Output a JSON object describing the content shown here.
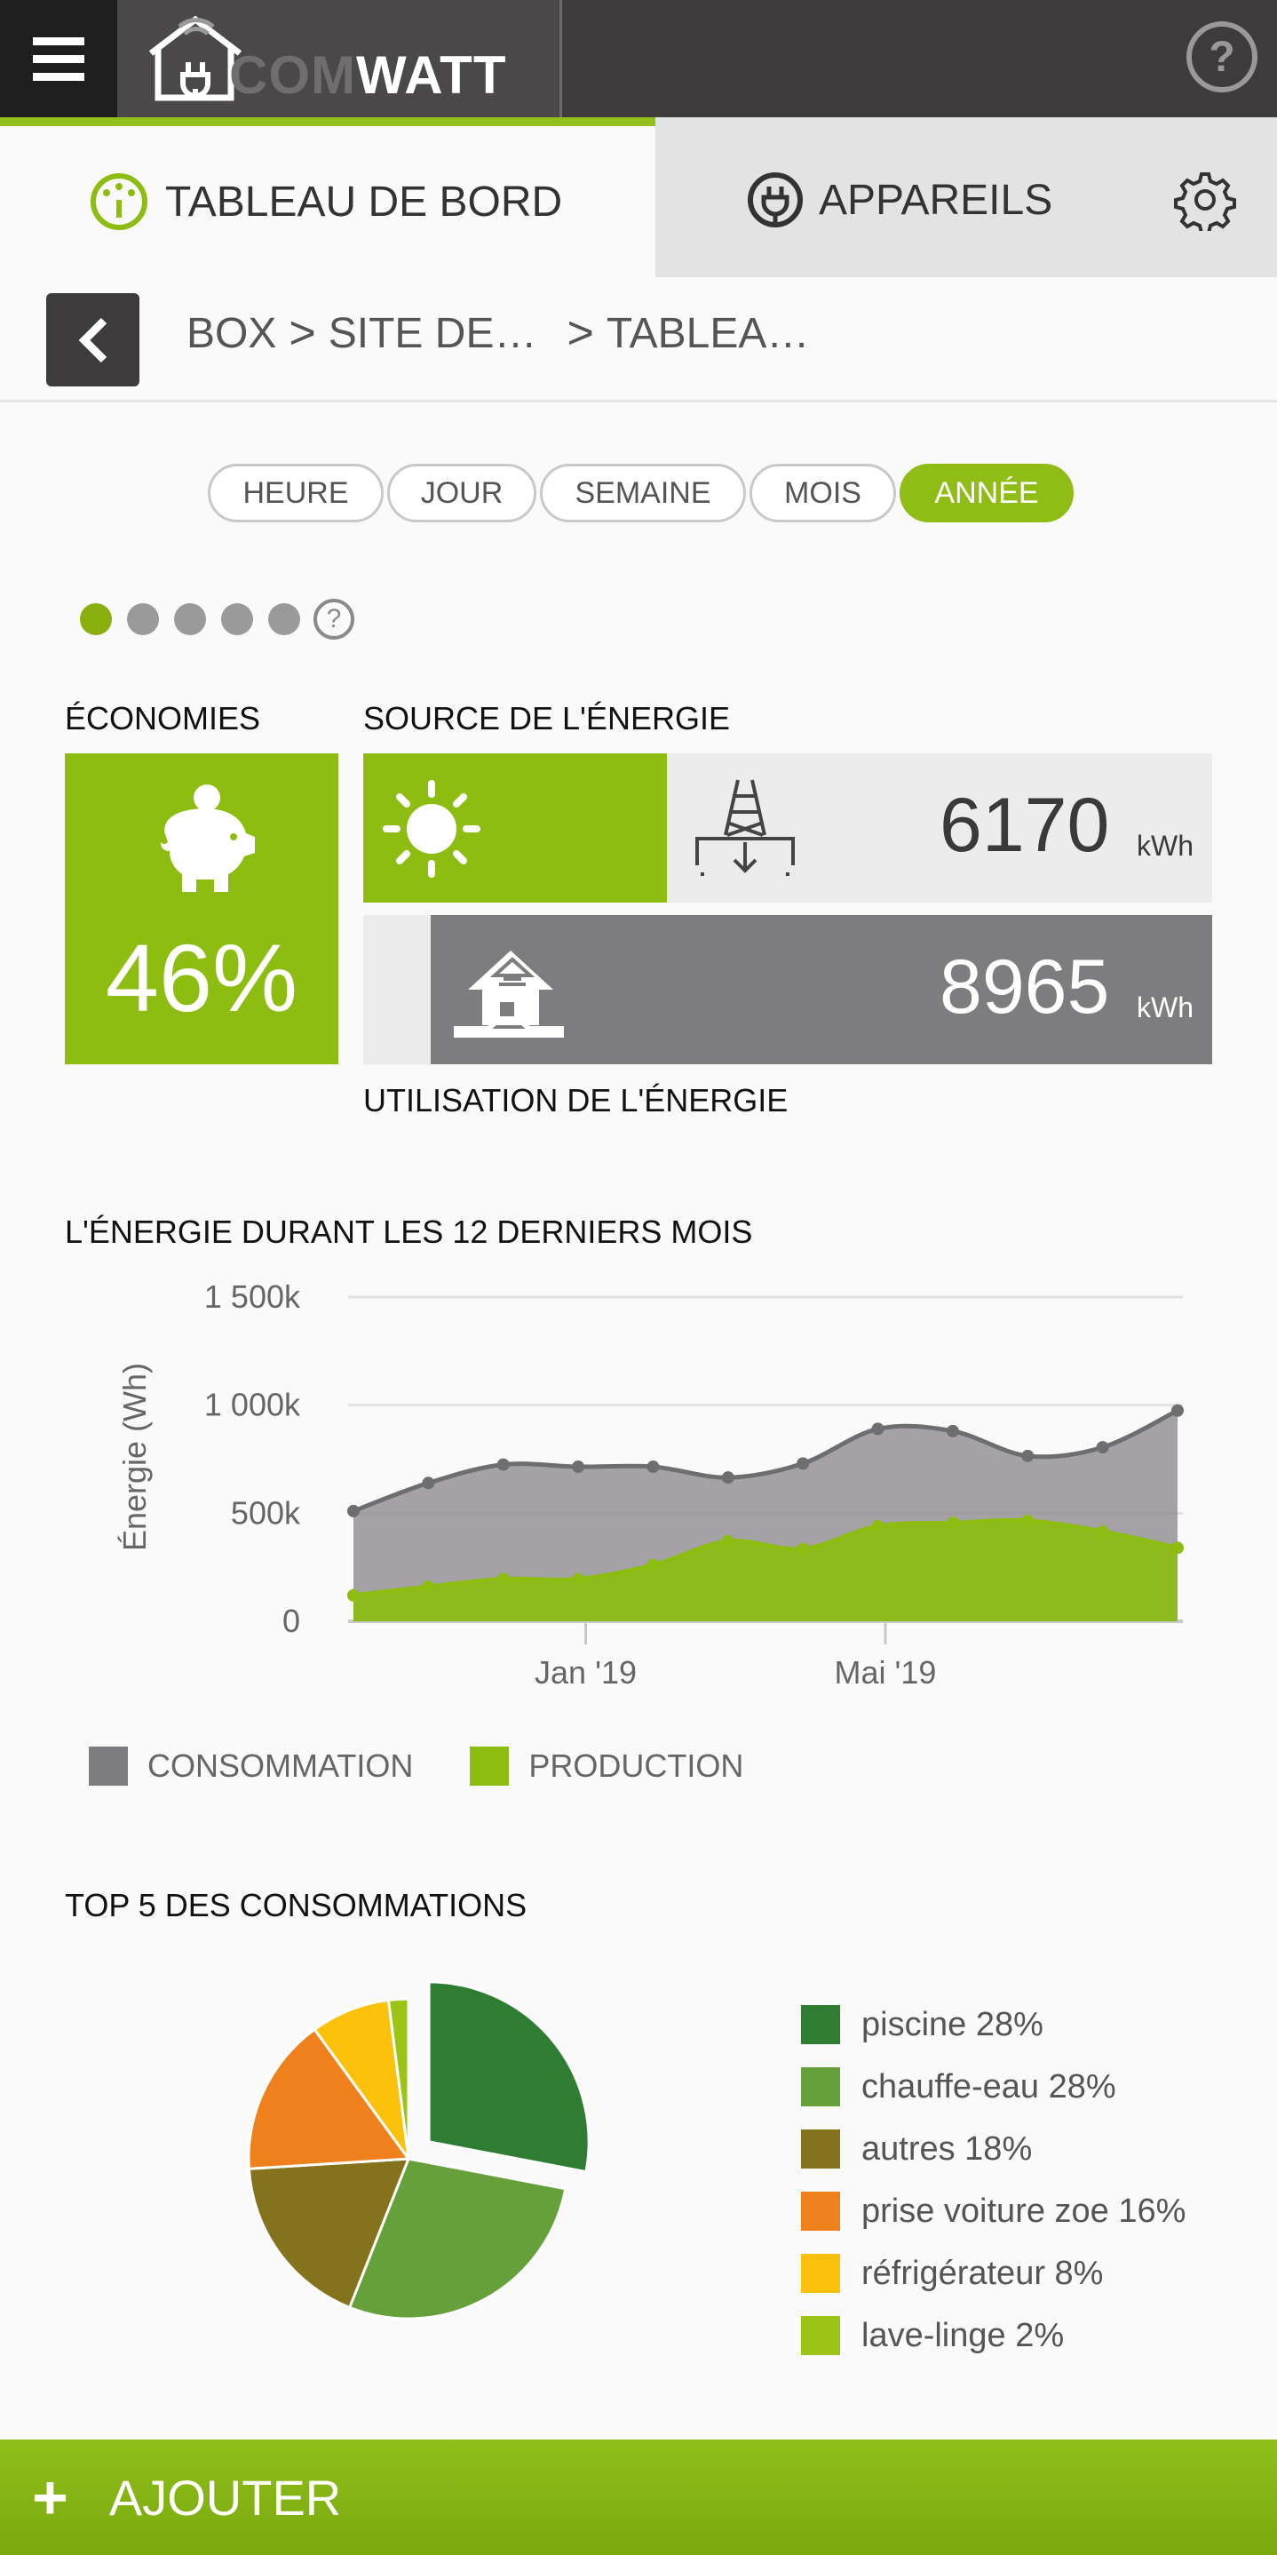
{
  "header": {
    "logo_prefix": "COM",
    "logo_suffix": "WATT",
    "help_glyph": "?"
  },
  "tabs": {
    "dashboard_label": "TABLEAU DE BORD",
    "devices_label": "APPAREILS"
  },
  "breadcrumb": {
    "items": [
      "BOX",
      "SITE DE…",
      "TABLEA…"
    ],
    "separator": ">"
  },
  "periods": [
    "HEURE",
    "JOUR",
    "SEMAINE",
    "MOIS",
    "ANNÉE"
  ],
  "active_period": "ANNÉE",
  "carousel": {
    "page_count": 5,
    "active_index": 0,
    "help_glyph": "?"
  },
  "summary": {
    "savings_title": "ÉCONOMIES",
    "savings_value": "46%",
    "source_title": "SOURCE DE L'ÉNERGIE",
    "grid_value": "6170",
    "grid_unit": "kWh",
    "usage_value": "8965",
    "usage_unit": "kWh",
    "usage_title": "UTILISATION DE L'ÉNERGIE"
  },
  "colors": {
    "accent": "#8cbd10",
    "consumption": "#7d7c7e",
    "production": "#8cbd10",
    "header": "#3d3b3c"
  },
  "chart_data": [
    {
      "type": "area",
      "title": "L'ÉNERGIE DURANT LES 12 DERNIERS MOIS",
      "ylabel": "Énergie (Wh)",
      "xlabel": "",
      "ylim": [
        0,
        1500000
      ],
      "yticks": [
        0,
        500000,
        1000000,
        1500000
      ],
      "ytick_labels": [
        "0",
        "500k",
        "1 000k",
        "1 500k"
      ],
      "xtick_labels": [
        {
          "label": "Jan '19",
          "index": 3
        },
        {
          "label": "Mai '19",
          "index": 7
        }
      ],
      "grid": true,
      "legend_position": "bottom-left",
      "series": [
        {
          "name": "CONSOMMATION",
          "color": "#8e8c8f",
          "values": [
            510000,
            640000,
            725000,
            715000,
            715000,
            665000,
            730000,
            890000,
            880000,
            765000,
            805000,
            975000
          ]
        },
        {
          "name": "PRODUCTION",
          "color": "#8cbd10",
          "values": [
            120000,
            160000,
            195000,
            195000,
            260000,
            370000,
            335000,
            440000,
            455000,
            465000,
            415000,
            340000
          ]
        }
      ]
    },
    {
      "type": "pie",
      "title": "TOP 5 DES CONSOMMATIONS",
      "legend_position": "right",
      "slices": [
        {
          "label": "piscine 28%",
          "value": 28,
          "color": "#2e7d32"
        },
        {
          "label": "chauffe-eau 28%",
          "value": 28,
          "color": "#66a03b"
        },
        {
          "label": "autres 18%",
          "value": 18,
          "color": "#84721c"
        },
        {
          "label": "prise voiture zoe 16%",
          "value": 16,
          "color": "#f0801c"
        },
        {
          "label": "réfrigérateur 8%",
          "value": 8,
          "color": "#fbc10b"
        },
        {
          "label": "lave-linge 2%",
          "value": 2,
          "color": "#9cc416"
        }
      ]
    }
  ],
  "add_button": {
    "plus": "+",
    "label": "AJOUTER"
  },
  "icons": {
    "menu": "hamburger-icon",
    "help": "help-icon",
    "dashboard": "gauge-icon",
    "devices": "plug-icon",
    "settings": "gear-icon",
    "back": "chevron-left-icon",
    "savings": "piggy-bank-icon",
    "solar": "sun-icon",
    "grid": "pylon-icon",
    "usage": "house-solar-icon"
  }
}
